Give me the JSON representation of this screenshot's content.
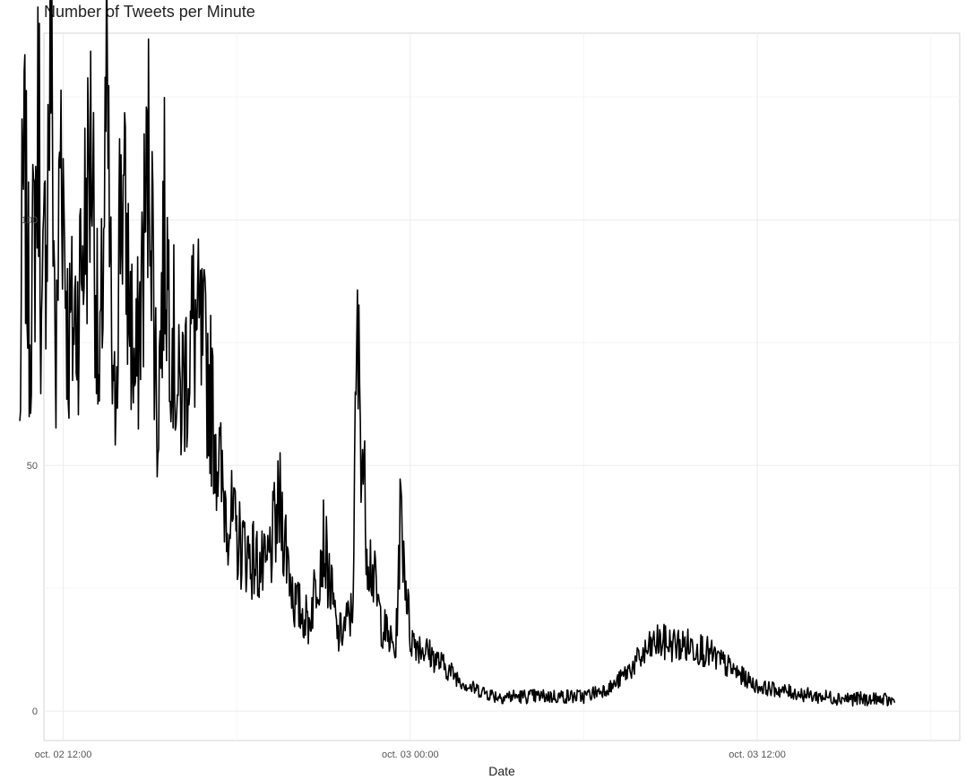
{
  "chart_data": {
    "type": "line",
    "title": "Number of Tweets per Minute",
    "xlabel": "Date",
    "ylabel": "",
    "x_axis": {
      "type": "datetime",
      "range": [
        "2022-10-02 11:20",
        "2022-10-03 19:00"
      ],
      "ticks": [
        {
          "value": "2022-10-02 12:00",
          "label": "oct. 02 12:00"
        },
        {
          "value": "2022-10-03 00:00",
          "label": "oct. 03 00:00"
        },
        {
          "value": "2022-10-03 12:00",
          "label": "oct. 03 12:00"
        }
      ]
    },
    "y_axis": {
      "range": [
        -6,
        138
      ],
      "ticks": [
        {
          "value": 0,
          "label": "0"
        },
        {
          "value": 50,
          "label": "50"
        },
        {
          "value": 100,
          "label": "100"
        }
      ]
    },
    "grid": true,
    "legend": "none",
    "line_color": "#000000",
    "series": [
      {
        "start": "2022-10-02 10:30",
        "end": "2022-10-03 16:45",
        "keypoints": [
          [
            "2022-10-02 10:30",
            56
          ],
          [
            "2022-10-02 10:35",
            99
          ],
          [
            "2022-10-02 10:40",
            110
          ],
          [
            "2022-10-02 10:50",
            78
          ],
          [
            "2022-10-02 11:00",
            95
          ],
          [
            "2022-10-02 11:10",
            125
          ],
          [
            "2022-10-02 11:15",
            72
          ],
          [
            "2022-10-02 11:30",
            118
          ],
          [
            "2022-10-02 11:35",
            138
          ],
          [
            "2022-10-02 11:45",
            65
          ],
          [
            "2022-10-02 11:55",
            123
          ],
          [
            "2022-10-02 12:10",
            75
          ],
          [
            "2022-10-02 12:30",
            82
          ],
          [
            "2022-10-02 13:00",
            117
          ],
          [
            "2022-10-02 13:15",
            60
          ],
          [
            "2022-10-02 13:30",
            124
          ],
          [
            "2022-10-02 13:45",
            55
          ],
          [
            "2022-10-02 14:00",
            110
          ],
          [
            "2022-10-02 14:30",
            65
          ],
          [
            "2022-10-02 15:00",
            117
          ],
          [
            "2022-10-02 15:15",
            58
          ],
          [
            "2022-10-02 15:30",
            98
          ],
          [
            "2022-10-02 16:00",
            62
          ],
          [
            "2022-10-02 16:30",
            79
          ],
          [
            "2022-10-02 17:00",
            69
          ],
          [
            "2022-10-02 17:30",
            45
          ],
          [
            "2022-10-02 18:00",
            35
          ],
          [
            "2022-10-02 19:00",
            28
          ],
          [
            "2022-10-02 19:30",
            42
          ],
          [
            "2022-10-02 20:00",
            22
          ],
          [
            "2022-10-02 20:30",
            18
          ],
          [
            "2022-10-02 21:00",
            35
          ],
          [
            "2022-10-02 21:30",
            15
          ],
          [
            "2022-10-02 22:00",
            20
          ],
          [
            "2022-10-02 22:10",
            75
          ],
          [
            "2022-10-02 22:30",
            35
          ],
          [
            "2022-10-02 23:00",
            18
          ],
          [
            "2022-10-02 23:30",
            12
          ],
          [
            "2022-10-02 23:40",
            41
          ],
          [
            "2022-10-03 00:00",
            15
          ],
          [
            "2022-10-03 01:00",
            10
          ],
          [
            "2022-10-03 02:00",
            5
          ],
          [
            "2022-10-03 03:00",
            3
          ],
          [
            "2022-10-03 06:00",
            3
          ],
          [
            "2022-10-03 07:00",
            5
          ],
          [
            "2022-10-03 08:30",
            14
          ],
          [
            "2022-10-03 10:00",
            13
          ],
          [
            "2022-10-03 12:00",
            5
          ],
          [
            "2022-10-03 14:00",
            3
          ],
          [
            "2022-10-03 16:45",
            2
          ]
        ]
      }
    ]
  }
}
